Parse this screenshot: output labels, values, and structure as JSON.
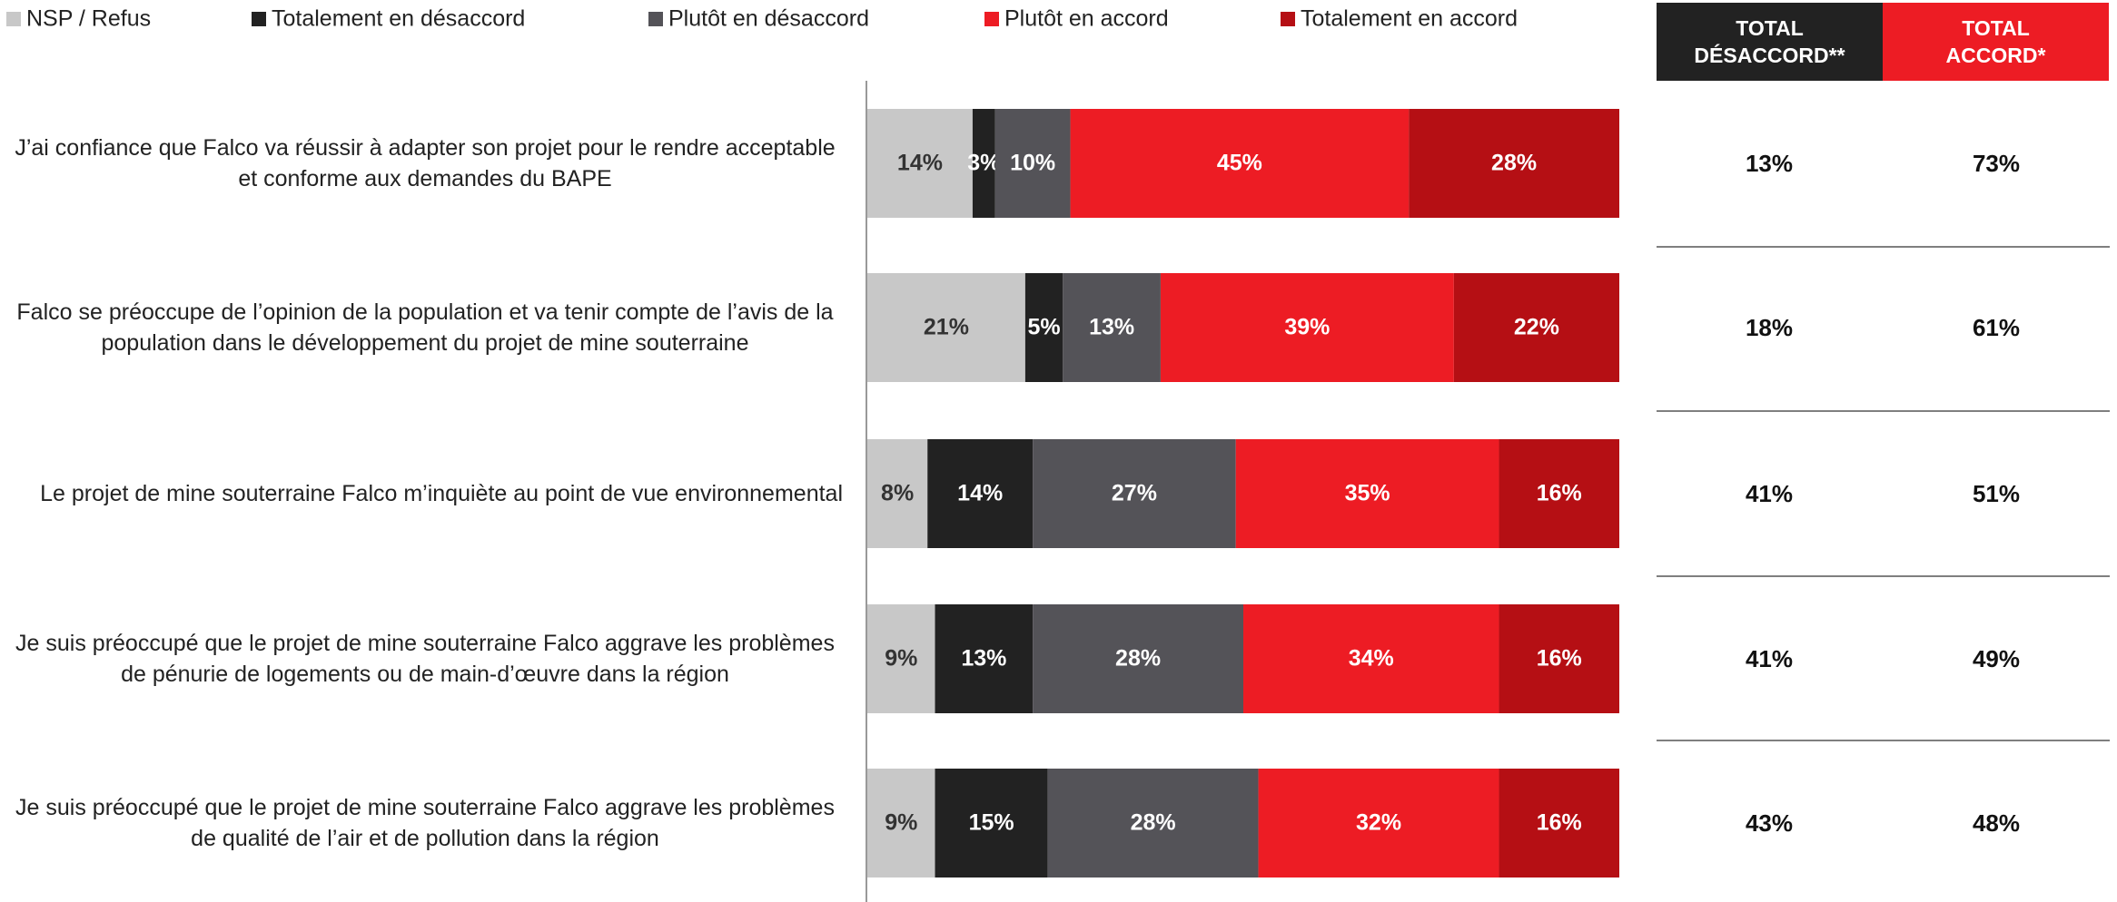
{
  "chart_data": {
    "type": "stacked-barh",
    "categories": [
      "J’ai confiance que Falco va réussir à adapter son projet pour le rendre acceptable et conforme aux demandes du BAPE",
      "Falco se préoccupe de l’opinion de la population et va tenir compte de l’avis de la population dans le développement du projet de mine souterraine",
      "Le projet de mine souterraine Falco m’inquiète au point de vue environnemental",
      "Je suis préoccupé que le projet de mine souterraine Falco aggrave les problèmes de pénurie de logements ou de main-d’œuvre dans la région",
      "Je suis préoccupé que le projet de mine souterraine Falco aggrave les problèmes de qualité de l’air et de pollution dans la région"
    ],
    "xlim": [
      0,
      100
    ],
    "series": [
      {
        "name": "NSP / Refus",
        "color": "#c8c8c8",
        "label_color": "#333333",
        "values": [
          14,
          21,
          8,
          9,
          9
        ],
        "value_labels": [
          "14%",
          "21%",
          "8%",
          "9%",
          "9%"
        ]
      },
      {
        "name": "Totalement en désaccord",
        "color": "#222222",
        "label_color": "#ffffff",
        "values": [
          3,
          5,
          14,
          13,
          15
        ],
        "value_labels": [
          "3%",
          "5%",
          "14%",
          "13%",
          "15%"
        ]
      },
      {
        "name": "Plutôt en désaccord",
        "color": "#545358",
        "label_color": "#ffffff",
        "values": [
          10,
          13,
          27,
          28,
          28
        ],
        "value_labels": [
          "10%",
          "13%",
          "27%",
          "28%",
          "28%"
        ]
      },
      {
        "name": "Plutôt en accord",
        "color": "#ed1c24",
        "label_color": "#ffffff",
        "values": [
          45,
          39,
          35,
          34,
          32
        ],
        "value_labels": [
          "45%",
          "39%",
          "35%",
          "34%",
          "32%"
        ]
      },
      {
        "name": "Totalement en accord",
        "color": "#b50f14",
        "label_color": "#ffffff",
        "values": [
          28,
          22,
          16,
          16,
          16
        ],
        "value_labels": [
          "28%",
          "22%",
          "16%",
          "16%",
          "16%"
        ]
      }
    ]
  },
  "totals": [
    {
      "header": "TOTAL DÉSACCORD**",
      "color": "#222222",
      "values": [
        "13%",
        "18%",
        "41%",
        "41%",
        "43%"
      ]
    },
    {
      "header": "TOTAL ACCORD*",
      "color": "#ed1c24",
      "values": [
        "73%",
        "61%",
        "51%",
        "49%",
        "48%"
      ]
    }
  ]
}
